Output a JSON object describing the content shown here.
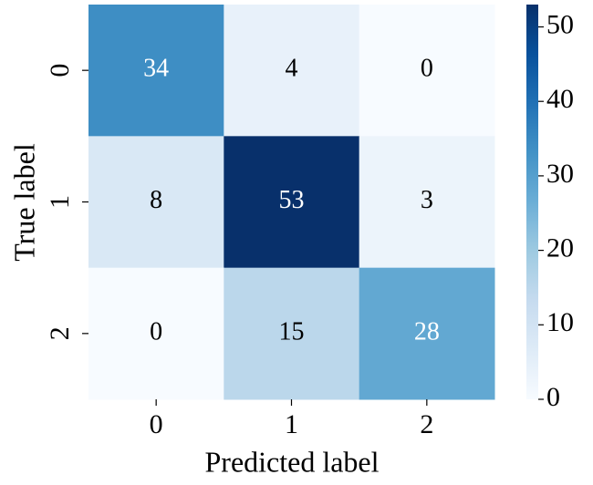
{
  "chart_data": {
    "type": "heatmap",
    "x_label": "Predicted label",
    "y_label": "True label",
    "x_categories": [
      "0",
      "1",
      "2"
    ],
    "y_categories": [
      "0",
      "1",
      "2"
    ],
    "matrix": [
      [
        34,
        4,
        0
      ],
      [
        8,
        53,
        3
      ],
      [
        0,
        15,
        28
      ]
    ],
    "colormap": "Blues",
    "clim": [
      0,
      53
    ],
    "cticks": [
      0,
      10,
      20,
      30,
      40,
      50
    ]
  }
}
